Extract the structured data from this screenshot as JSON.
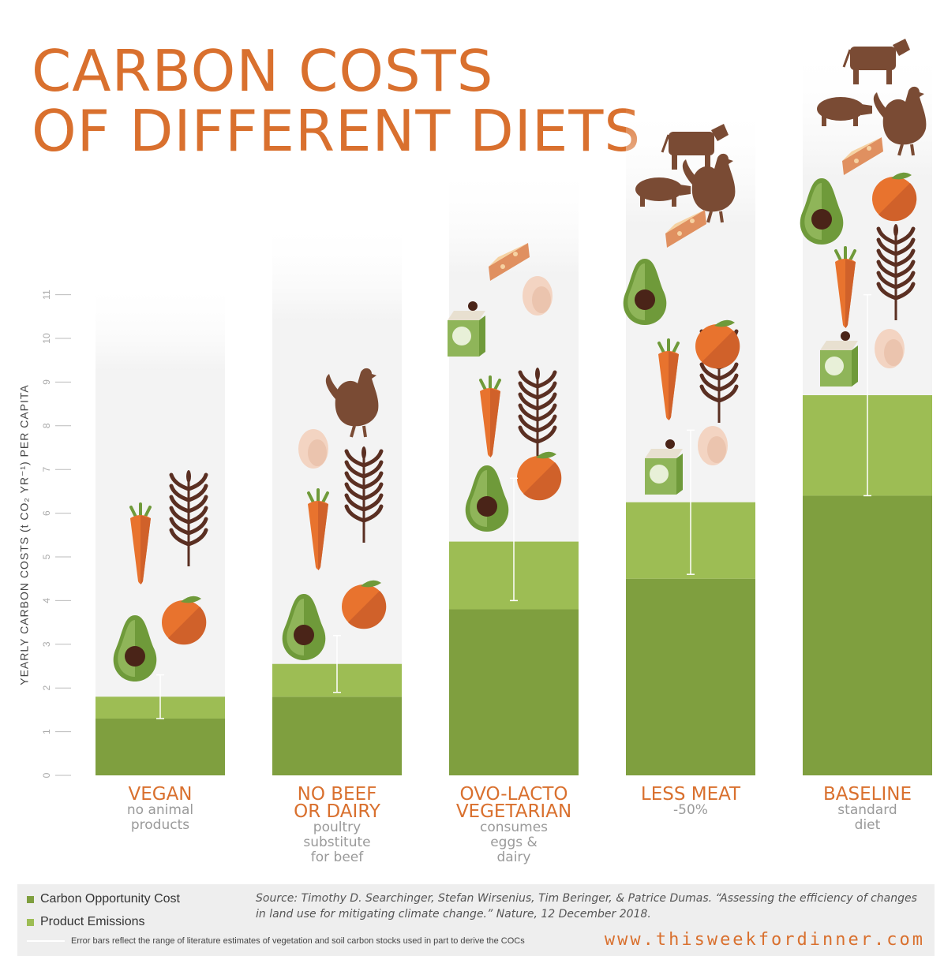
{
  "title_lines": [
    "CARBON COSTS",
    "OF DIFFERENT DIETS"
  ],
  "colors": {
    "title": "#d9702e",
    "carbon_opportunity_cost": "#7f9f3f",
    "product_emissions": "#9dbd54",
    "error_bar": "#ffffff",
    "column_background": "#f3f3f3",
    "subtitle": "#9a9a9a",
    "footer_background": "#eeeeee"
  },
  "chart_data": {
    "type": "bar",
    "stacked": true,
    "ylabel": "YEARLY CARBON COSTS (t CO₂ YR⁻¹) PER CAPITA",
    "ylim": [
      0,
      11
    ],
    "yticks": [
      "0",
      "1",
      "2",
      "3",
      "4",
      "5",
      "6",
      "7",
      "8",
      "9",
      "10",
      "11"
    ],
    "grid": false,
    "categories": [
      {
        "name": [
          "VEGAN"
        ],
        "subtitle": [
          "no animal",
          "products"
        ]
      },
      {
        "name": [
          "NO BEEF",
          "OR DAIRY"
        ],
        "subtitle": [
          "poultry",
          "substitute",
          "for beef"
        ]
      },
      {
        "name": [
          "OVO-LACTO",
          "VEGETARIAN"
        ],
        "subtitle": [
          "consumes",
          "eggs &",
          "dairy"
        ]
      },
      {
        "name": [
          "LESS MEAT"
        ],
        "subtitle": [
          "-50%"
        ]
      },
      {
        "name": [
          "BASELINE"
        ],
        "subtitle": [
          "standard",
          "diet"
        ]
      }
    ],
    "series": [
      {
        "name": "Carbon Opportunity Cost",
        "values": [
          1.3,
          1.8,
          3.8,
          4.5,
          6.4
        ]
      },
      {
        "name": "Product Emissions",
        "values": [
          0.5,
          0.75,
          1.55,
          1.75,
          2.3
        ]
      }
    ],
    "error_bars": [
      {
        "low": 1.3,
        "high": 2.3
      },
      {
        "low": 1.9,
        "high": 3.2
      },
      {
        "low": 4.0,
        "high": 6.8
      },
      {
        "low": 4.6,
        "high": 7.9
      },
      {
        "low": 6.4,
        "high": 11.0
      }
    ],
    "food_icons": [
      [
        "carrot-icon",
        "wheat-icon",
        "avocado-icon",
        "orange-icon"
      ],
      [
        "chicken-icon",
        "egg-icon",
        "carrot-icon",
        "wheat-icon",
        "avocado-icon",
        "orange-icon"
      ],
      [
        "cheese-icon",
        "egg-icon",
        "milk-carton-icon",
        "wheat-icon",
        "carrot-icon",
        "avocado-icon",
        "orange-icon"
      ],
      [
        "cow-icon",
        "pig-icon",
        "chicken-icon",
        "cheese-icon",
        "egg-icon",
        "milk-carton-icon",
        "wheat-icon",
        "carrot-icon",
        "avocado-icon",
        "orange-icon"
      ],
      [
        "cow-icon",
        "pig-icon",
        "chicken-icon",
        "cheese-icon",
        "milk-carton-icon",
        "egg-icon",
        "carrot-icon",
        "wheat-icon",
        "avocado-icon",
        "orange-icon"
      ]
    ]
  },
  "legend": {
    "carbon_opportunity_cost": "Carbon Opportunity Cost",
    "product_emissions": "Product Emissions",
    "error_note": "Error bars reflect the range of literature estimates of vegetation and soil carbon stocks used in part to derive the COCs"
  },
  "source_text": "Source: Timothy D. Searchinger, Stefan Wirsenius, Tim Beringer, & Patrice Dumas. “Assessing the efficiency of changes in land use for mitigating climate change.” Nature, 12 December 2018.",
  "website": "www.thisweekfordinner.com"
}
